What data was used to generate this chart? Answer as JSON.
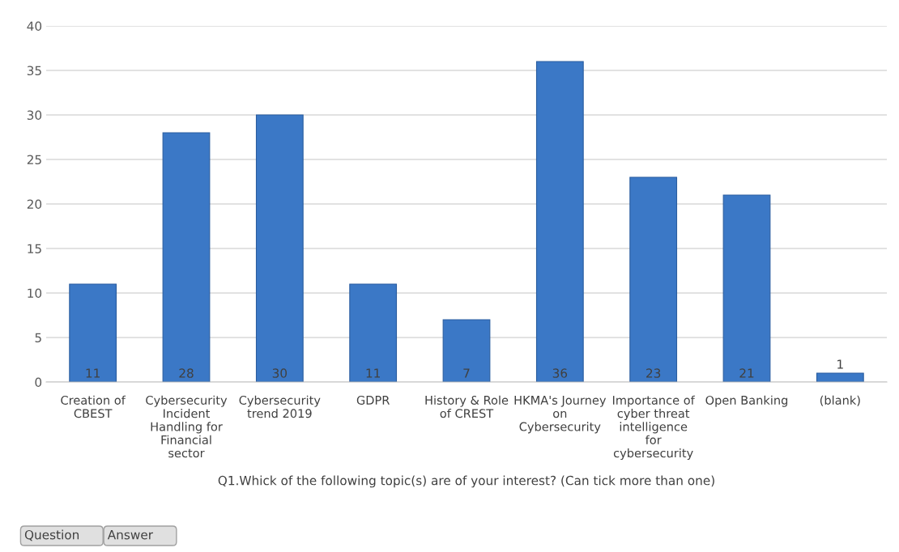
{
  "chart_data": {
    "type": "bar",
    "xlabel": "Q1.Whick of the following topic(s) are of your interest? (Can tick more than one)",
    "categories": [
      "Creation of CBEST",
      "Cybersecurity Incident Handling for Financial sector",
      "Cybersecurity trend 2019",
      "GDPR",
      "History & Role of CREST",
      "HKMA's Journey on Cybersecurity",
      "Importance of cyber threat intelligence for cybersecurity",
      "Open Banking",
      "(blank)"
    ],
    "values": [
      11,
      28,
      30,
      11,
      7,
      36,
      23,
      21,
      1
    ],
    "color": "#3b78c6",
    "ylim": [
      0,
      40
    ],
    "yticks": [
      0,
      5,
      10,
      15,
      20,
      25,
      30,
      35,
      40
    ],
    "grid": "y",
    "data_labels": true,
    "legend": false,
    "annotations": [
      "Question",
      "Answer"
    ]
  }
}
